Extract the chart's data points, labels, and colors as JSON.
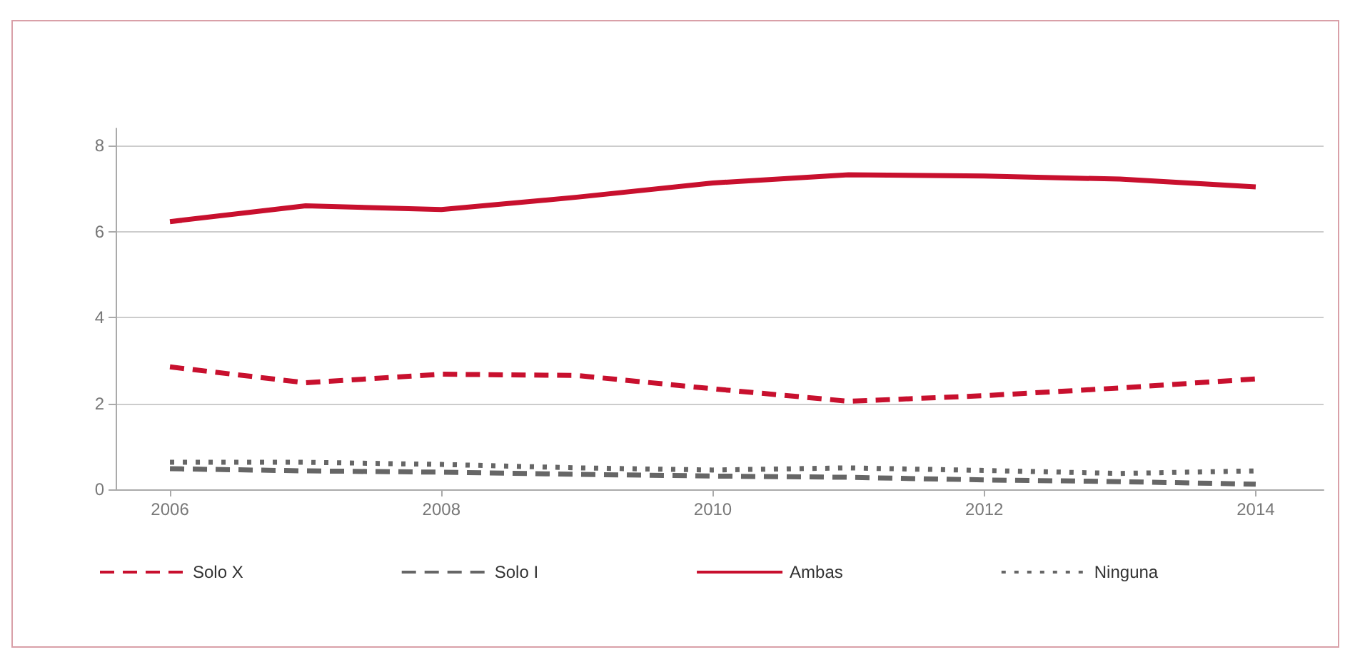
{
  "chart_data": {
    "type": "line",
    "x": [
      2006,
      2007,
      2008,
      2009,
      2010,
      2011,
      2012,
      2013,
      2014
    ],
    "series": [
      {
        "name": "Solo X",
        "color": "#c8102e",
        "line_style": "dashed",
        "values": [
          2.85,
          2.48,
          2.68,
          2.65,
          2.34,
          2.05,
          2.18,
          2.36,
          2.57
        ]
      },
      {
        "name": "Solo I",
        "color": "#666666",
        "line_style": "dashed",
        "values": [
          0.48,
          0.43,
          0.4,
          0.35,
          0.31,
          0.28,
          0.22,
          0.18,
          0.12
        ]
      },
      {
        "name": "Ambas",
        "color": "#c8102e",
        "line_style": "solid",
        "values": [
          6.23,
          6.6,
          6.51,
          6.8,
          7.13,
          7.32,
          7.29,
          7.22,
          7.04
        ]
      },
      {
        "name": "Ninguna",
        "color": "#666666",
        "line_style": "dotted",
        "values": [
          0.63,
          0.63,
          0.58,
          0.5,
          0.45,
          0.5,
          0.44,
          0.37,
          0.43
        ]
      }
    ],
    "xlim": [
      2005.6,
      2014.5
    ],
    "xticks": [
      2006,
      2008,
      2010,
      2012,
      2014
    ],
    "ylim": [
      0,
      8.4
    ],
    "yticks": [
      0,
      2,
      4,
      6,
      8
    ],
    "grid": "y",
    "legend": "bottom",
    "marker": "none"
  }
}
